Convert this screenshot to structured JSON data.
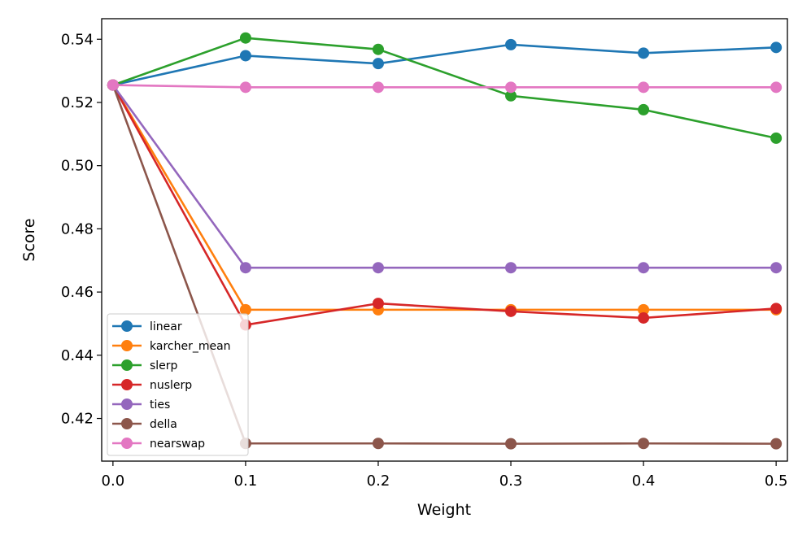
{
  "chart_data": {
    "type": "line",
    "title": "",
    "xlabel": "Weight",
    "ylabel": "Score",
    "x": [
      0.0,
      0.1,
      0.2,
      0.3,
      0.4,
      0.5
    ],
    "x_tick_labels": [
      "0.0",
      "0.1",
      "0.2",
      "0.3",
      "0.4",
      "0.5"
    ],
    "y_ticks": [
      0.42,
      0.44,
      0.46,
      0.48,
      0.5,
      0.52,
      0.54
    ],
    "y_tick_labels": [
      "0.42",
      "0.44",
      "0.46",
      "0.48",
      "0.50",
      "0.52",
      "0.54"
    ],
    "xlim": [
      -0.0085,
      0.5085
    ],
    "ylim": [
      0.4065,
      0.5465
    ],
    "grid": false,
    "legend_position": "lower-left",
    "series": [
      {
        "name": "linear",
        "color": "#1f77b4",
        "values": [
          0.5255,
          0.5348,
          0.5323,
          0.5383,
          0.5356,
          0.5374
        ]
      },
      {
        "name": "karcher_mean",
        "color": "#ff7f0e",
        "values": [
          0.5255,
          0.4544,
          0.4544,
          0.4544,
          0.4544,
          0.4544
        ]
      },
      {
        "name": "slerp",
        "color": "#2ca02c",
        "values": [
          0.5255,
          0.5404,
          0.5368,
          0.5221,
          0.5177,
          0.5087
        ]
      },
      {
        "name": "nuslerp",
        "color": "#d62728",
        "values": [
          0.5255,
          0.4496,
          0.4564,
          0.4539,
          0.4518,
          0.4548
        ]
      },
      {
        "name": "ties",
        "color": "#9467bd",
        "values": [
          0.5255,
          0.4677,
          0.4677,
          0.4677,
          0.4677,
          0.4677
        ]
      },
      {
        "name": "della",
        "color": "#8c564b",
        "values": [
          0.5255,
          0.4121,
          0.4121,
          0.412,
          0.4121,
          0.412
        ]
      },
      {
        "name": "nearswap",
        "color": "#e377c2",
        "values": [
          0.5255,
          0.5248,
          0.5248,
          0.5248,
          0.5248,
          0.5248
        ]
      }
    ]
  }
}
